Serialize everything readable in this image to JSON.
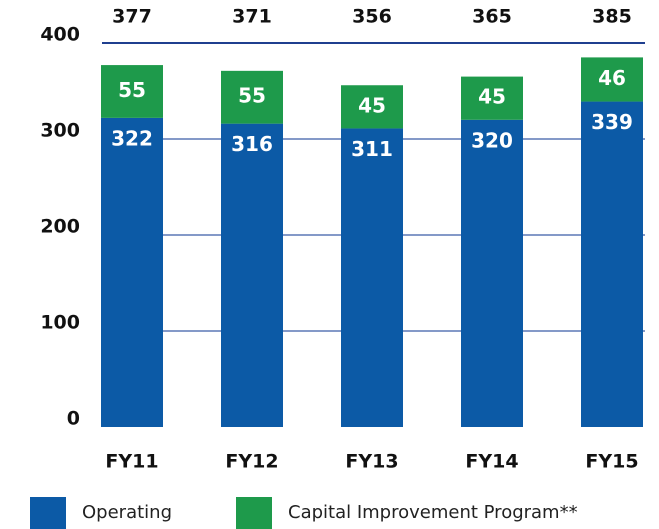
{
  "chart_data": {
    "type": "stacked_bar",
    "categories": [
      "FY11",
      "FY12",
      "FY13",
      "FY14",
      "FY15"
    ],
    "series": [
      {
        "name": "Operating",
        "color": "#0c5aa6",
        "values": [
          322,
          316,
          311,
          320,
          339
        ]
      },
      {
        "name": "Capital Improvement Program**",
        "color": "#1e9a4b",
        "values": [
          55,
          55,
          45,
          45,
          46
        ]
      }
    ],
    "totals": [
      377,
      371,
      356,
      365,
      385
    ],
    "ylim": [
      0,
      400
    ],
    "yticks": [
      0,
      100,
      200,
      300,
      400
    ],
    "grid": true,
    "grid_color": "#3a5ca8"
  }
}
